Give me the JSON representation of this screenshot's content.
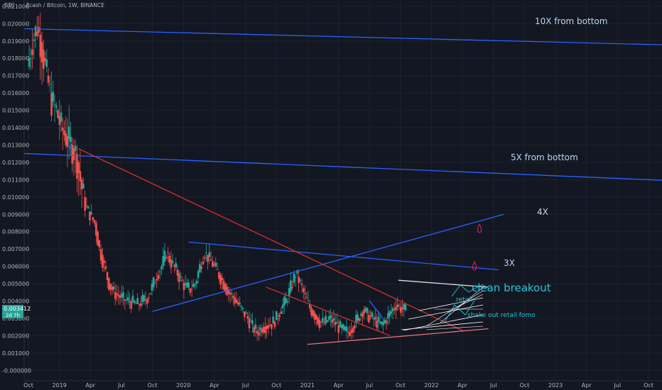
{
  "header": {
    "axis_unit": "BTC",
    "title": "Zcash / Bitcoin, 1W, BINANCE"
  },
  "price_badge": {
    "price": "0.003412",
    "countdown": "2d 7h"
  },
  "colors": {
    "background": "#131722",
    "up": "#26a69a",
    "down": "#ef5350",
    "trend_blue": "#2962ff",
    "trend_red": "#d32f2f",
    "annotation_cyan": "#26c6da",
    "annotation_light": "#b9d7f0"
  },
  "annotations": {
    "ten_x": "10X from bottom",
    "five_x": "5X from bottom",
    "four_x": "4X",
    "three_x": "3X",
    "clean_breakout": "clean breakout",
    "shake_out": "shake out retail fomo",
    "retail": "retail"
  },
  "chart_data": {
    "type": "candlestick",
    "title": "Zcash / Bitcoin, 1W, BINANCE",
    "ylabel": "BTC",
    "ylim": [
      -0.0006,
      0.0212
    ],
    "y_ticks": [
      "0.021000",
      "0.020000",
      "0.019000",
      "0.018000",
      "0.017000",
      "0.016000",
      "0.015000",
      "0.014000",
      "0.013000",
      "0.012000",
      "0.011000",
      "0.010000",
      "0.009000",
      "0.008000",
      "0.007000",
      "0.006000",
      "0.005000",
      "0.004000",
      "0.003000",
      "0.002000",
      "0.001000",
      "-0.000000"
    ],
    "x_ticks": [
      "Oct",
      "2019",
      "Apr",
      "Jul",
      "Oct",
      "2020",
      "Apr",
      "Jul",
      "Oct",
      "2021",
      "Apr",
      "Jul",
      "Oct",
      "2022",
      "Apr",
      "Jul",
      "Oct",
      "2023",
      "Apr",
      "Jul",
      "Oct"
    ],
    "x_tick_months": [
      0,
      3,
      6,
      9,
      12,
      15,
      18,
      21,
      24,
      27,
      30,
      33,
      36,
      39,
      42,
      45,
      48,
      51,
      54,
      57,
      60
    ],
    "x_start": "2018-10",
    "last_price": 0.003412,
    "price_path": [
      [
        0,
        0.0175
      ],
      [
        1,
        0.019
      ],
      [
        2,
        0.0198
      ],
      [
        3,
        0.0185
      ],
      [
        4,
        0.017
      ],
      [
        5,
        0.0155
      ],
      [
        6,
        0.015
      ],
      [
        7,
        0.014
      ],
      [
        8,
        0.0135
      ],
      [
        9,
        0.013
      ],
      [
        10,
        0.0125
      ],
      [
        11,
        0.011
      ],
      [
        12,
        0.0095
      ],
      [
        13,
        0.009
      ],
      [
        14,
        0.0085
      ],
      [
        15,
        0.007
      ],
      [
        16,
        0.006
      ],
      [
        17,
        0.005
      ],
      [
        18,
        0.0045
      ],
      [
        19,
        0.0043
      ],
      [
        20,
        0.0041
      ],
      [
        21,
        0.004
      ],
      [
        22,
        0.0039
      ],
      [
        23,
        0.0038
      ],
      [
        24,
        0.004
      ],
      [
        25,
        0.0042
      ],
      [
        26,
        0.0048
      ],
      [
        27,
        0.0055
      ],
      [
        28,
        0.006
      ],
      [
        29,
        0.0068
      ],
      [
        30,
        0.0062
      ],
      [
        31,
        0.0058
      ],
      [
        32,
        0.0052
      ],
      [
        33,
        0.0048
      ],
      [
        34,
        0.0047
      ],
      [
        35,
        0.005
      ],
      [
        36,
        0.006
      ],
      [
        37,
        0.0068
      ],
      [
        38,
        0.0064
      ],
      [
        39,
        0.006
      ],
      [
        40,
        0.0055
      ],
      [
        41,
        0.005
      ],
      [
        42,
        0.0045
      ],
      [
        43,
        0.0042
      ],
      [
        44,
        0.0038
      ],
      [
        45,
        0.0034
      ],
      [
        46,
        0.003
      ],
      [
        47,
        0.0025
      ],
      [
        48,
        0.0022
      ],
      [
        49,
        0.0025
      ],
      [
        50,
        0.0026
      ],
      [
        51,
        0.0027
      ],
      [
        52,
        0.003
      ],
      [
        53,
        0.0036
      ],
      [
        54,
        0.004
      ],
      [
        55,
        0.0048
      ],
      [
        56,
        0.0056
      ],
      [
        57,
        0.005
      ],
      [
        58,
        0.0042
      ],
      [
        59,
        0.0036
      ],
      [
        60,
        0.0032
      ],
      [
        61,
        0.0028
      ],
      [
        62,
        0.0027
      ],
      [
        63,
        0.003
      ],
      [
        64,
        0.0028
      ],
      [
        65,
        0.0025
      ],
      [
        66,
        0.0023
      ],
      [
        67,
        0.0022
      ],
      [
        68,
        0.0026
      ],
      [
        69,
        0.003
      ],
      [
        70,
        0.0035
      ],
      [
        71,
        0.0032
      ],
      [
        72,
        0.003
      ],
      [
        73,
        0.0028
      ],
      [
        74,
        0.0026
      ],
      [
        75,
        0.003
      ],
      [
        76,
        0.0034
      ],
      [
        77,
        0.0038
      ],
      [
        78,
        0.0036
      ],
      [
        79,
        0.0034
      ]
    ],
    "trendlines": [
      {
        "name": "10x",
        "color": "#2962ff",
        "p1": [
          0,
          0.0197
        ],
        "p2": [
          60,
          0.0188
        ]
      },
      {
        "name": "5x",
        "color": "#2962ff",
        "p1": [
          0,
          0.0125
        ],
        "p2": [
          60,
          0.011
        ]
      },
      {
        "name": "4x",
        "color": "#2962ff",
        "p1": [
          12,
          0.0034
        ],
        "p2": [
          46,
          0.009
        ]
      },
      {
        "name": "3x",
        "color": "#2962ff",
        "p1": [
          15.5,
          0.0074
        ],
        "p2": [
          45.5,
          0.0058
        ]
      },
      {
        "name": "red-down",
        "color": "#d32f2f",
        "p1": [
          4.8,
          0.0128
        ],
        "p2": [
          42,
          0.0023
        ]
      },
      {
        "name": "red-down-2",
        "color": "#d32f2f",
        "p1": [
          23,
          0.0048
        ],
        "p2": [
          35,
          0.002
        ]
      },
      {
        "name": "red-floor",
        "color": "#e57373",
        "p1": [
          27,
          0.0015
        ],
        "p2": [
          44.5,
          0.0024
        ]
      },
      {
        "name": "white-top",
        "color": "#e0e0e0",
        "p1": [
          35.8,
          0.0052
        ],
        "p2": [
          44.5,
          0.0048
        ]
      }
    ]
  }
}
